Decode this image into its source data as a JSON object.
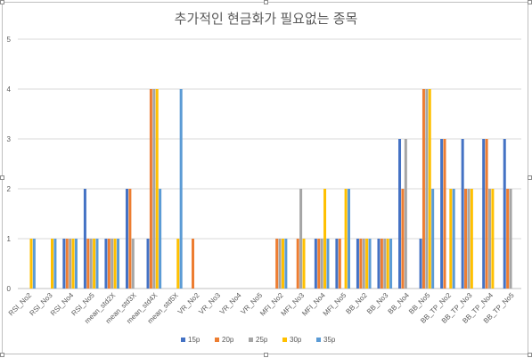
{
  "chart_data": {
    "type": "bar",
    "title": "추가적인 현금화가 필요없는 종목",
    "ylim": [
      0,
      5
    ],
    "yticks": [
      0,
      1,
      2,
      3,
      4,
      5
    ],
    "grid": true,
    "legend_position": "bottom",
    "categories": [
      "RSI_No2",
      "RSI_No3",
      "RSI_No4",
      "RSI_No5",
      "mean_std2X",
      "mean_std3X",
      "mean_std4X",
      "mean_std5X",
      "VR_No2",
      "VR_No3",
      "VR_No4",
      "VR_No5",
      "MFI_No2",
      "MFI_No3",
      "MFI_No4",
      "MFI_No5",
      "BB_No2",
      "BB_No3",
      "BB_No4",
      "BB_No5",
      "BB_TP_No2",
      "BB_TP_No3",
      "BB_TP_No4",
      "BB_TP_No5"
    ],
    "series": [
      {
        "name": "15p",
        "color": "#4472c4",
        "values": [
          0,
          0,
          1,
          2,
          1,
          2,
          1,
          0,
          0,
          0,
          0,
          0,
          0,
          0,
          1,
          1,
          1,
          1,
          3,
          1,
          3,
          3,
          3,
          3
        ]
      },
      {
        "name": "20p",
        "color": "#ed7d31",
        "values": [
          0,
          0,
          1,
          1,
          1,
          2,
          4,
          0,
          1,
          0,
          0,
          0,
          1,
          1,
          1,
          1,
          1,
          1,
          2,
          4,
          3,
          2,
          3,
          2
        ]
      },
      {
        "name": "25p",
        "color": "#a5a5a5",
        "values": [
          0,
          0,
          1,
          1,
          1,
          1,
          4,
          0,
          0,
          0,
          0,
          0,
          1,
          2,
          1,
          0,
          1,
          1,
          3,
          4,
          0,
          2,
          2,
          2
        ]
      },
      {
        "name": "30p",
        "color": "#ffc000",
        "values": [
          1,
          1,
          1,
          1,
          1,
          0,
          4,
          1,
          0,
          0,
          0,
          0,
          1,
          1,
          2,
          2,
          1,
          1,
          0,
          4,
          2,
          2,
          2,
          0
        ]
      },
      {
        "name": "35p",
        "color": "#5b9bd5",
        "values": [
          1,
          1,
          1,
          1,
          1,
          0,
          2,
          4,
          0,
          0,
          0,
          0,
          1,
          0,
          1,
          2,
          1,
          1,
          0,
          2,
          2,
          0,
          0,
          0
        ]
      }
    ]
  }
}
